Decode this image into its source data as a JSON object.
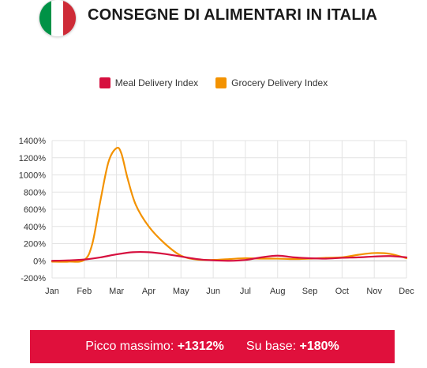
{
  "header": {
    "title": "CONSEGNE DI ALIMENTARI IN ITALIA",
    "flag_colors": [
      "#009246",
      "#ffffff",
      "#ce2b37"
    ]
  },
  "colors": {
    "meal": "#d6103f",
    "grocery": "#f39200",
    "banner": "#e0103c"
  },
  "banner": {
    "peak_label": "Picco massimo:",
    "peak_value": "+1312%",
    "base_label": "Su base:",
    "base_value": "+180%"
  },
  "chart_data": {
    "type": "line",
    "title": "",
    "xlabel": "",
    "ylabel": "",
    "legend_position": "top-center",
    "grid": {
      "horizontal": true,
      "vertical": true
    },
    "categories": [
      "Jan",
      "Feb",
      "Mar",
      "Apr",
      "May",
      "Jun",
      "Jul",
      "Aug",
      "Sep",
      "Oct",
      "Nov",
      "Dec"
    ],
    "y_ticks": [
      "1400%",
      "1200%",
      "1000%",
      "800%",
      "600%",
      "400%",
      "200%",
      "0%",
      "-200%"
    ],
    "ylim": [
      -200,
      1400
    ],
    "series": [
      {
        "name": "Meal Delivery Index",
        "color": "#d6103f",
        "x": [
          0,
          0.5,
          1,
          1.5,
          2,
          2.5,
          3,
          3.5,
          4,
          4.5,
          5,
          5.5,
          6,
          6.5,
          7,
          7.5,
          8,
          8.5,
          9,
          9.5,
          10,
          10.5,
          11
        ],
        "y": [
          0,
          5,
          15,
          40,
          75,
          100,
          100,
          80,
          50,
          20,
          5,
          0,
          10,
          40,
          60,
          40,
          30,
          25,
          35,
          40,
          50,
          55,
          40
        ]
      },
      {
        "name": "Grocery Delivery Index",
        "color": "#f39200",
        "x": [
          0,
          0.5,
          1,
          1.25,
          1.5,
          1.75,
          2,
          2.15,
          2.35,
          2.6,
          3,
          3.5,
          4,
          4.5,
          5,
          5.5,
          6,
          6.5,
          7,
          7.5,
          8,
          8.5,
          9,
          9.5,
          10,
          10.5,
          11
        ],
        "y": [
          -10,
          -10,
          10,
          200,
          700,
          1150,
          1312,
          1250,
          950,
          650,
          400,
          200,
          60,
          15,
          10,
          20,
          30,
          25,
          25,
          20,
          25,
          35,
          40,
          70,
          90,
          80,
          30
        ]
      }
    ]
  }
}
